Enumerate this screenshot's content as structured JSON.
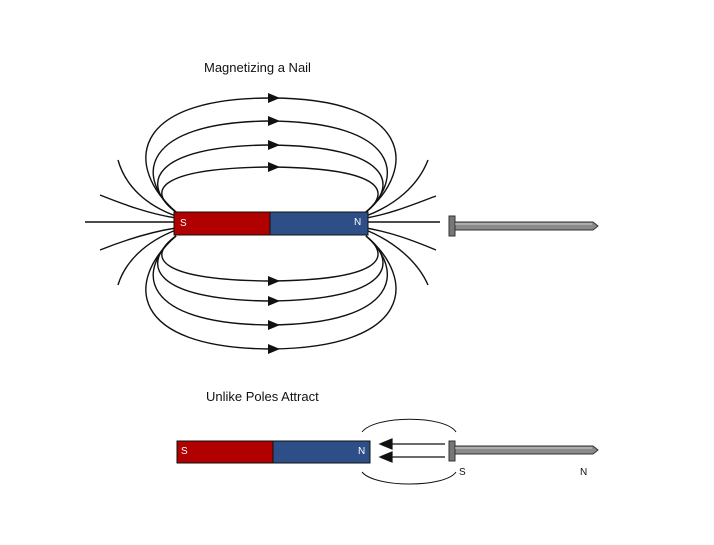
{
  "diagram1": {
    "title": "Magnetizing a Nail",
    "magnet": {
      "south_label": "S",
      "north_label": "N",
      "south_color": "#b00000",
      "north_color": "#2d4e87"
    }
  },
  "diagram2": {
    "title": "Unlike Poles Attract",
    "magnet": {
      "south_label": "S",
      "north_label": "N",
      "south_color": "#b00000",
      "north_color": "#2d4e87"
    },
    "nail_poles": {
      "south": "S",
      "north": "N"
    }
  },
  "colors": {
    "line": "#111111",
    "nail": "#808080",
    "nail_edge": "#333333"
  }
}
